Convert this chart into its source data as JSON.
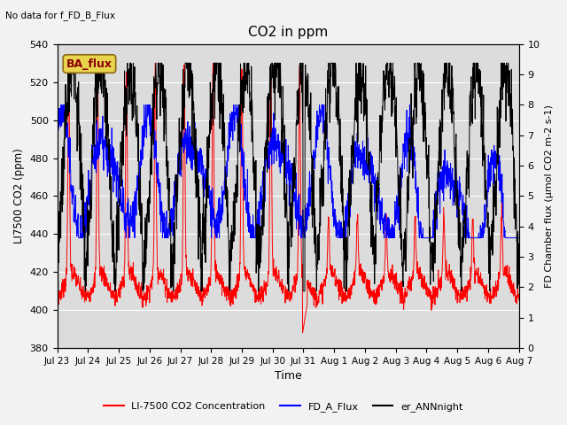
{
  "title": "CO2 in ppm",
  "top_left_text": "No data for f_FD_B_Flux",
  "legend_box_text": "BA_flux",
  "xlabel": "Time",
  "ylabel_left": "LI7500 CO2 (ppm)",
  "ylabel_right": "FD Chamber flux (μmol CO2 m-2 s-1)",
  "ylim_left": [
    380,
    540
  ],
  "ylim_right": [
    0.0,
    10.0
  ],
  "yticks_left": [
    380,
    400,
    420,
    440,
    460,
    480,
    500,
    520,
    540
  ],
  "yticks_right": [
    0.0,
    1.0,
    2.0,
    3.0,
    4.0,
    5.0,
    6.0,
    7.0,
    8.0,
    9.0,
    10.0
  ],
  "xtick_labels": [
    "Jul 23",
    "Jul 24",
    "Jul 25",
    "Jul 26",
    "Jul 27",
    "Jul 28",
    "Jul 29",
    "Jul 30",
    "Jul 31",
    "Aug 1",
    "Aug 2",
    "Aug 3",
    "Aug 4",
    "Aug 5",
    "Aug 6",
    "Aug 7"
  ],
  "line_red_label": "LI-7500 CO2 Concentration",
  "line_blue_label": "FD_A_Flux",
  "line_black_label": "er_ANNnight",
  "fig_facecolor": "#f2f2f2",
  "plot_bg_color": "#dcdcdc",
  "n_points": 1920,
  "seed": 7
}
